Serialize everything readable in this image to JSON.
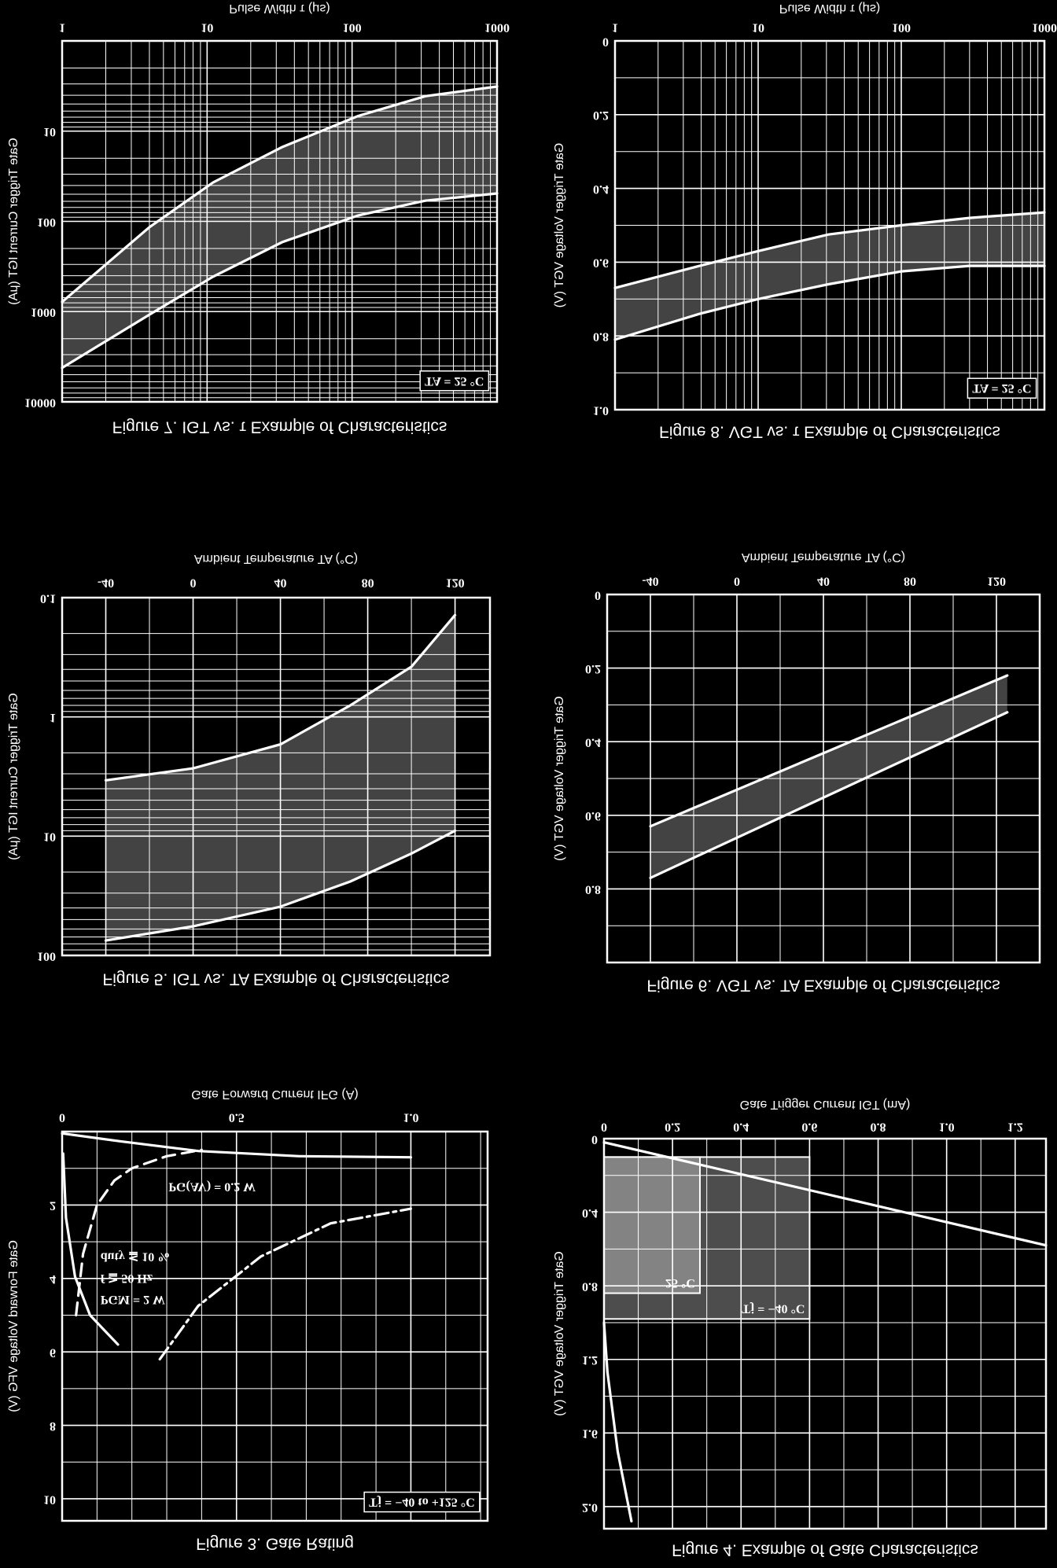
{
  "chart_data": [
    {
      "type": "line",
      "title": "Figure 3. Gate Rating",
      "xlabel": "Gate Forward Current IFG (A)",
      "ylabel": "Gate Forward Voltage VFG (V)",
      "xscale": "linear",
      "yscale": "linear",
      "xlim": [
        0,
        1.22
      ],
      "ylim": [
        0,
        10.6
      ],
      "xticks": [
        0,
        0.5,
        {
          "value": 1,
          "label": "1.0"
        }
      ],
      "yticks": [
        2,
        4,
        6,
        8,
        10
      ],
      "x_minor": 0.1,
      "y_minor": 1,
      "grid": true,
      "series": [
        {
          "x": [
            0.04,
            0.06,
            0.1,
            0.15,
            0.2,
            0.3,
            0.4
          ],
          "values": [
            5,
            3.33,
            2,
            1.33,
            1,
            0.67,
            0.5
          ],
          "color": "#ffffff",
          "dash": "dashed"
        },
        {
          "x": [
            0.28,
            0.39,
            0.57,
            0.77,
            1.0
          ],
          "values": [
            6.2,
            4.75,
            3.4,
            2.5,
            2.1
          ],
          "color": "#ffffff",
          "dash": "dashdot"
        },
        {
          "x": [
            0,
            0.17,
            0.39,
            0.68,
            1.0
          ],
          "values": [
            0.05,
            0.27,
            0.53,
            0.67,
            0.7
          ],
          "color": "#ffffff",
          "dash": "solid"
        },
        {
          "x": [
            0.003,
            0.011,
            0.037,
            0.08,
            0.16
          ],
          "values": [
            0.6,
            2.35,
            3.95,
            5.0,
            5.8
          ],
          "color": "#ffffff",
          "dash": "solid"
        }
      ],
      "annotations": [
        "PGM = 2 W",
        "f ≧ 50 Hz",
        "duty ≦ 10 %",
        "PG(AV) = 0.2 W",
        "Tj = −40 to +125 °C"
      ]
    },
    {
      "type": "line",
      "title": "Figure 4. Example of Gate Characteristics",
      "xlabel": "Gate Trigger Current IGT (mA)",
      "ylabel": "Gate Trigger Voltage VGT (V)",
      "xscale": "linear",
      "yscale": "linear",
      "xlim": [
        0,
        1.29
      ],
      "ylim": [
        0,
        2.12
      ],
      "xticks": [
        0,
        0.2,
        0.4,
        0.6,
        0.8,
        {
          "value": 1,
          "label": "1.0"
        },
        1.2
      ],
      "yticks": [
        0,
        0.4,
        0.8,
        1.2,
        1.6,
        {
          "value": 2,
          "label": "2.0"
        }
      ],
      "x_minor": 0.1,
      "y_minor": 0.2,
      "grid": true,
      "series": [
        {
          "x": [
            0,
            0.6,
            1.29
          ],
          "values": [
            0.02,
            0.28,
            0.58
          ],
          "color": "#ffffff",
          "dash": "solid"
        },
        {
          "x": [
            0,
            0.01,
            0.04,
            0.08
          ],
          "values": [
            1.0,
            1.27,
            1.7,
            2.08
          ],
          "color": "#ffffff",
          "dash": "solid"
        }
      ],
      "regions": [
        {
          "name": "Tj = −40 °C",
          "x": [
            0,
            0.6
          ],
          "y": [
            0.1,
            0.98
          ]
        },
        {
          "name": "25 °C",
          "x": [
            0,
            0.28
          ],
          "y": [
            0.1,
            0.84
          ]
        }
      ]
    },
    {
      "type": "line",
      "title": "Figure 5. IGT vs. TA Example of Characteristics",
      "xlabel": "Ambient Temperature TA (°C)",
      "ylabel": "Gate Trigger Current IGT (μA)",
      "xscale": "linear",
      "yscale": "log",
      "xlim": [
        -60,
        136
      ],
      "ylim": [
        0.1,
        100
      ],
      "xticks": [
        -40,
        0,
        40,
        80,
        120
      ],
      "yticks": [
        0.1,
        1,
        10,
        100
      ],
      "x_minor": 20,
      "grid": true,
      "shade": "between",
      "series": [
        {
          "x": [
            -40,
            0,
            40,
            72,
            100,
            120
          ],
          "values": [
            3.4,
            2.7,
            1.7,
            0.8,
            0.38,
            0.14
          ],
          "color": "#ffffff",
          "dash": "solid"
        },
        {
          "x": [
            -40,
            0,
            40,
            72,
            100,
            120
          ],
          "values": [
            75,
            57,
            39,
            24,
            14,
            9
          ],
          "color": "#ffffff",
          "dash": "solid"
        }
      ]
    },
    {
      "type": "line",
      "title": "Figure 6. VGT vs. TA Example of Characteristics",
      "xlabel": "Ambient Temperature TA (°C)",
      "ylabel": "Gate Trigger Voltage VGT (V)",
      "xscale": "linear",
      "yscale": "linear",
      "xlim": [
        -60,
        140
      ],
      "ylim": [
        0,
        1
      ],
      "xticks": [
        -40,
        0,
        40,
        80,
        120
      ],
      "yticks": [
        0,
        0.2,
        0.4,
        0.6,
        0.8
      ],
      "x_minor": 20,
      "y_minor": 0.1,
      "grid": true,
      "shade": "between",
      "series": [
        {
          "x": [
            -40,
            125
          ],
          "values": [
            0.63,
            0.22
          ],
          "color": "#ffffff",
          "dash": "solid"
        },
        {
          "x": [
            -40,
            125
          ],
          "values": [
            0.77,
            0.32
          ],
          "color": "#ffffff",
          "dash": "solid"
        }
      ]
    },
    {
      "type": "line",
      "title": "Figure 7. IGT vs. τ Example of Characteristics",
      "xlabel": "Pulse Width τ (μs)",
      "ylabel": "Gate Trigger Current IGT (μA)",
      "xscale": "log",
      "yscale": "log",
      "xlim": [
        1,
        1000
      ],
      "ylim": [
        1,
        10000
      ],
      "xticks": [
        1,
        10,
        100,
        1000
      ],
      "yticks": [
        10,
        100,
        1000,
        10000
      ],
      "grid": true,
      "shade": "between",
      "series": [
        {
          "x": [
            1,
            4,
            11,
            33,
            110,
            320,
            1000
          ],
          "values": [
            780,
            116,
            37,
            15,
            6.8,
            4.1,
            3.2
          ],
          "color": "#ffffff",
          "dash": "solid"
        },
        {
          "x": [
            1,
            4,
            11,
            33,
            110,
            320,
            1000
          ],
          "values": [
            4200,
            1080,
            410,
            170,
            86,
            59,
            49
          ],
          "color": "#ffffff",
          "dash": "solid"
        }
      ],
      "annotations": [
        "TA = 25 °C"
      ]
    },
    {
      "type": "line",
      "title": "Figure 8. VGT vs. τ Example of Characteristics",
      "xlabel": "Pulse Width τ (μs)",
      "ylabel": "Gate Trigger Voltage VGT (V)",
      "xscale": "log",
      "yscale": "linear",
      "xlim": [
        1,
        1000
      ],
      "ylim": [
        0,
        1
      ],
      "xticks": [
        1,
        10,
        100,
        1000
      ],
      "yticks": [
        0,
        0.2,
        0.4,
        0.6,
        0.8,
        {
          "value": 1,
          "label": "1.0"
        }
      ],
      "y_minor": 0.1,
      "grid": true,
      "shade": "between",
      "series": [
        {
          "x": [
            1,
            3.9,
            10,
            31,
            100,
            300,
            1000
          ],
          "values": [
            0.67,
            0.61,
            0.57,
            0.525,
            0.5,
            0.48,
            0.465
          ],
          "color": "#ffffff",
          "dash": "solid"
        },
        {
          "x": [
            1,
            3.9,
            10,
            31,
            100,
            300,
            1000
          ],
          "values": [
            0.81,
            0.74,
            0.7,
            0.66,
            0.625,
            0.61,
            0.61
          ],
          "color": "#ffffff",
          "dash": "solid"
        }
      ],
      "annotations": [
        "TA = 25 °C"
      ]
    }
  ]
}
